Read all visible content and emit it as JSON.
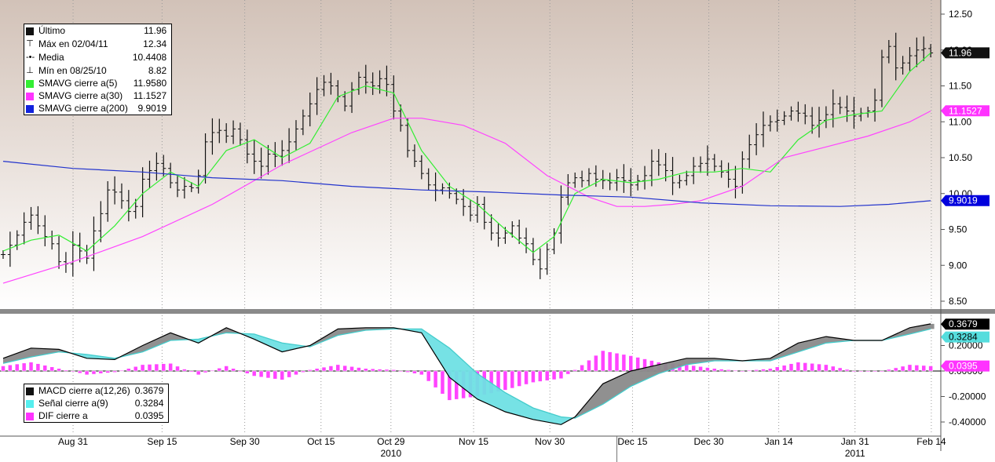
{
  "chart_data": [
    {
      "type": "line",
      "panel": "price",
      "ylim": [
        8.3,
        12.7
      ],
      "yticks": [
        "8.50",
        "9.00",
        "9.50",
        "10.00",
        "10.50",
        "11.00",
        "11.50",
        "12.00",
        "12.50"
      ],
      "grid": "vertical dotted at date ticks",
      "legend_position": "top-left",
      "background": "gradient taupe to white",
      "legend": [
        {
          "icon": "black-square",
          "label": "Último",
          "value": "11.96"
        },
        {
          "icon": "max-marker",
          "label": "Máx en 02/04/11",
          "value": "12.34"
        },
        {
          "icon": "mean-marker",
          "label": "Media",
          "value": "10.4408"
        },
        {
          "icon": "min-marker",
          "label": "Mín en 08/25/10",
          "value": "8.82"
        },
        {
          "icon": "green-square",
          "label": "SMAVG cierre a(5)",
          "value": "11.9580"
        },
        {
          "icon": "magenta-square",
          "label": "SMAVG cierre a(30)",
          "value": "11.1527"
        },
        {
          "icon": "blue-square",
          "label": "SMAVG cierre a(200)",
          "value": "9.9019"
        }
      ],
      "value_tags": [
        {
          "text": "11.96",
          "value": 11.96,
          "bg": "#111111",
          "fg": "#ffffff"
        },
        {
          "text": "11.1527",
          "value": 11.1527,
          "bg": "#ff33ff",
          "fg": "#ffffff"
        },
        {
          "text": "9.9019",
          "value": 9.9019,
          "bg": "#0000dd",
          "fg": "#ffffff"
        }
      ],
      "ohlc_close": [
        9.15,
        9.28,
        9.42,
        9.6,
        9.7,
        9.55,
        9.4,
        9.3,
        9.05,
        9.02,
        9.28,
        9.2,
        9.1,
        9.48,
        9.72,
        10.05,
        10.02,
        9.9,
        9.75,
        9.82,
        10.2,
        10.32,
        10.42,
        10.35,
        10.15,
        10.05,
        10.1,
        10.08,
        10.25,
        10.72,
        10.85,
        10.88,
        10.8,
        10.9,
        10.75,
        10.55,
        10.45,
        10.38,
        10.55,
        10.52,
        10.6,
        10.72,
        10.9,
        11.08,
        11.25,
        11.45,
        11.55,
        11.5,
        11.35,
        11.22,
        11.45,
        11.62,
        11.55,
        11.5,
        11.6,
        11.52,
        11.15,
        10.95,
        10.6,
        10.45,
        10.28,
        10.12,
        10.05,
        10.08,
        10.0,
        9.92,
        9.82,
        9.7,
        9.85,
        9.6,
        9.45,
        9.38,
        9.45,
        9.55,
        9.38,
        9.3,
        9.08,
        8.95,
        9.22,
        9.45,
        9.95,
        10.15,
        10.22,
        10.18,
        10.28,
        10.2,
        10.18,
        10.15,
        10.22,
        10.18,
        10.12,
        10.18,
        10.25,
        10.45,
        10.4,
        10.32,
        10.15,
        10.18,
        10.25,
        10.38,
        10.42,
        10.48,
        10.38,
        10.3,
        10.2,
        10.1,
        10.48,
        10.68,
        10.82,
        10.95,
        11.0,
        11.02,
        11.08,
        11.15,
        11.12,
        11.08,
        10.95,
        11.02,
        11.1,
        11.25,
        11.2,
        11.15,
        11.08,
        11.12,
        11.15,
        11.3,
        11.9,
        12.05,
        11.75,
        11.82,
        11.92,
        12.0,
        12.02,
        11.96
      ],
      "series": [
        {
          "name": "SMAVG cierre a(5)",
          "color": "#33ee33",
          "x": [
            0,
            4,
            8,
            12,
            16,
            20,
            24,
            28,
            32,
            36,
            40,
            44,
            48,
            52,
            56,
            60,
            64,
            68,
            72,
            76,
            79,
            82,
            86,
            90,
            94,
            98,
            102,
            106,
            110,
            114,
            118,
            122,
            126,
            130,
            133
          ],
          "values": [
            9.2,
            9.35,
            9.42,
            9.2,
            9.55,
            10.0,
            10.3,
            10.1,
            10.6,
            10.75,
            10.5,
            10.7,
            11.35,
            11.5,
            11.4,
            10.6,
            10.1,
            9.85,
            9.5,
            9.18,
            9.4,
            10.0,
            10.2,
            10.15,
            10.2,
            10.3,
            10.3,
            10.35,
            10.3,
            10.75,
            11.02,
            11.1,
            11.15,
            11.7,
            11.96
          ]
        },
        {
          "name": "SMAVG cierre a(30)",
          "color": "#ff44ff",
          "x": [
            0,
            10,
            20,
            30,
            40,
            50,
            56,
            60,
            66,
            72,
            78,
            84,
            88,
            92,
            96,
            100,
            106,
            112,
            118,
            124,
            130,
            133
          ],
          "values": [
            8.75,
            9.05,
            9.4,
            9.85,
            10.4,
            10.85,
            11.05,
            11.05,
            10.95,
            10.7,
            10.25,
            9.95,
            9.82,
            9.82,
            9.85,
            9.9,
            10.1,
            10.5,
            10.65,
            10.8,
            11.0,
            11.15
          ]
        },
        {
          "name": "SMAVG cierre a(200)",
          "color": "#2233cc",
          "x": [
            0,
            10,
            20,
            30,
            40,
            50,
            60,
            70,
            80,
            90,
            100,
            110,
            120,
            127,
            133
          ],
          "values": [
            10.45,
            10.35,
            10.3,
            10.22,
            10.18,
            10.1,
            10.05,
            10.02,
            9.98,
            9.95,
            9.87,
            9.83,
            9.82,
            9.85,
            9.9
          ]
        }
      ]
    },
    {
      "type": "area",
      "panel": "macd",
      "ylim": [
        -0.46,
        0.46
      ],
      "yticks": [
        "-0.40000",
        "-0.20000",
        "0.00000",
        "0.20000"
      ],
      "legend_position": "bottom-left",
      "legend": [
        {
          "icon": "black-square",
          "label": "MACD cierre a(12,26)",
          "value": "0.3679"
        },
        {
          "icon": "cyan-square",
          "label": "Señal cierre a(9)",
          "value": "0.3284"
        },
        {
          "icon": "magenta-square",
          "label": "DIF cierre a",
          "value": "0.0395"
        }
      ],
      "value_tags": [
        {
          "text": "0.3679",
          "value": 0.3679,
          "bg": "#000000",
          "fg": "#ffffff"
        },
        {
          "text": "0.3284",
          "value": 0.3284,
          "bg": "#55dddd",
          "fg": "#000000"
        },
        {
          "text": "0.0395",
          "value": 0.0395,
          "bg": "#ff33ff",
          "fg": "#ffffff"
        }
      ],
      "x": [
        0,
        4,
        8,
        12,
        16,
        20,
        24,
        28,
        32,
        36,
        40,
        44,
        48,
        52,
        56,
        60,
        64,
        68,
        72,
        76,
        80,
        82,
        86,
        90,
        94,
        98,
        102,
        106,
        110,
        114,
        118,
        122,
        126,
        130,
        133
      ],
      "series": [
        {
          "name": "MACD cierre a(12,26)",
          "color": "#000000",
          "values": [
            0.1,
            0.18,
            0.17,
            0.1,
            0.09,
            0.2,
            0.3,
            0.22,
            0.34,
            0.25,
            0.15,
            0.2,
            0.33,
            0.34,
            0.34,
            0.3,
            -0.05,
            -0.22,
            -0.32,
            -0.38,
            -0.42,
            -0.36,
            -0.1,
            0.0,
            0.05,
            0.1,
            0.1,
            0.08,
            0.1,
            0.22,
            0.27,
            0.24,
            0.24,
            0.34,
            0.37
          ]
        },
        {
          "name": "Señal cierre a(9)",
          "color": "#55dddd",
          "values": [
            0.06,
            0.11,
            0.15,
            0.13,
            0.1,
            0.15,
            0.24,
            0.25,
            0.3,
            0.29,
            0.22,
            0.19,
            0.28,
            0.32,
            0.33,
            0.33,
            0.18,
            -0.02,
            -0.17,
            -0.29,
            -0.36,
            -0.37,
            -0.26,
            -0.12,
            -0.02,
            0.05,
            0.08,
            0.08,
            0.08,
            0.15,
            0.22,
            0.24,
            0.24,
            0.29,
            0.33
          ]
        },
        {
          "name": "DIF cierre a",
          "color": "#ff33ff",
          "values": [
            0.04,
            0.07,
            0.02,
            -0.03,
            -0.01,
            0.05,
            0.06,
            -0.03,
            0.04,
            -0.04,
            -0.07,
            0.01,
            0.05,
            0.02,
            0.01,
            -0.03,
            -0.23,
            -0.2,
            -0.15,
            -0.09,
            -0.06,
            0.01,
            0.16,
            0.12,
            0.07,
            0.05,
            0.02,
            0.0,
            0.02,
            0.07,
            0.05,
            0.0,
            0.0,
            0.05,
            0.04
          ]
        }
      ]
    }
  ],
  "x_axis": {
    "count": 134,
    "ticks": [
      {
        "i": 11,
        "label": "Aug 31"
      },
      {
        "i": 25,
        "label": "Sep 15"
      },
      {
        "i": 38,
        "label": "Sep 30"
      },
      {
        "i": 50,
        "label": "Oct 15"
      },
      {
        "i": 61,
        "label": "Oct 29"
      },
      {
        "i": 74,
        "label": "Nov 15"
      },
      {
        "i": 86,
        "label": "Nov 30"
      },
      {
        "i": 99,
        "label": "Dec 15"
      },
      {
        "i": 111,
        "label": "Dec 30"
      },
      {
        "i": 122,
        "label": "Jan 14"
      },
      {
        "i": 134,
        "label": "Jan 31"
      },
      {
        "i": 146,
        "label": "Feb 14"
      }
    ],
    "years": [
      {
        "label": "2010",
        "at_tick": 4
      },
      {
        "label": "2011",
        "at_tick": 10
      }
    ]
  }
}
